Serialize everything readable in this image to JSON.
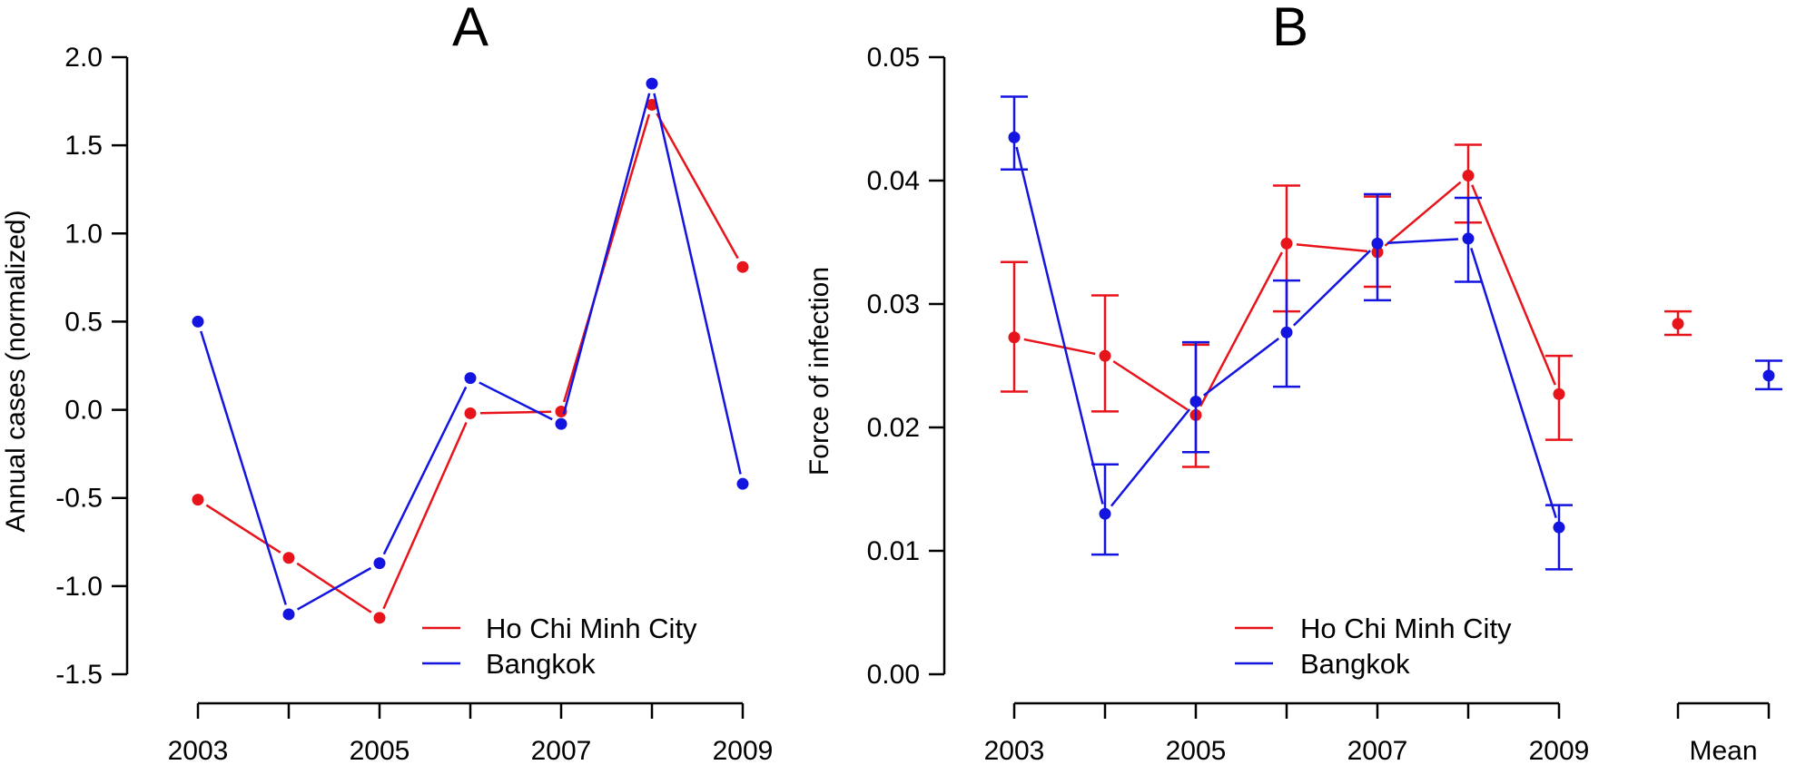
{
  "chart_data": [
    {
      "panel": "A",
      "type": "line",
      "title": "A",
      "xlabel": "",
      "ylabel": "Annual cases (normalized)",
      "x": [
        2003,
        2004,
        2005,
        2006,
        2007,
        2008,
        2009
      ],
      "x_tick_labels": [
        "2003",
        "2005",
        "2007",
        "2009"
      ],
      "y_tick_labels": [
        "-1.5",
        "-1.0",
        "-0.5",
        "0.0",
        "0.5",
        "1.0",
        "1.5",
        "2.0"
      ],
      "ylim": [
        -1.5,
        2.0
      ],
      "legend_position": "bottom-right",
      "series": [
        {
          "name": "Ho Chi Minh City",
          "color": "#e8141b",
          "values": [
            -0.51,
            -0.84,
            -1.18,
            -0.02,
            -0.01,
            1.73,
            0.81
          ]
        },
        {
          "name": "Bangkok",
          "color": "#1414e0",
          "values": [
            0.5,
            -1.16,
            -0.87,
            0.18,
            -0.08,
            1.85,
            -0.42
          ]
        }
      ]
    },
    {
      "panel": "B",
      "type": "line",
      "title": "B",
      "xlabel": "",
      "ylabel": "Force of infection",
      "x": [
        2003,
        2004,
        2005,
        2006,
        2007,
        2008,
        2009
      ],
      "x_tick_labels": [
        "2003",
        "2005",
        "2007",
        "2009"
      ],
      "mean_label": "Mean",
      "y_tick_labels": [
        "0.00",
        "0.01",
        "0.02",
        "0.03",
        "0.04",
        "0.05"
      ],
      "ylim": [
        0.0,
        0.05
      ],
      "legend_position": "bottom-right",
      "series": [
        {
          "name": "Ho Chi Minh City",
          "color": "#e8141b",
          "values": [
            0.0273,
            0.0258,
            0.021,
            0.0349,
            0.0342,
            0.0404,
            0.0227
          ],
          "lower": [
            0.0229,
            0.0213,
            0.0168,
            0.0294,
            0.0314,
            0.0366,
            0.019
          ],
          "upper": [
            0.0334,
            0.0307,
            0.0267,
            0.0396,
            0.0387,
            0.0429,
            0.0258
          ],
          "mean": 0.0284,
          "mean_lower": 0.0275,
          "mean_upper": 0.0294
        },
        {
          "name": "Bangkok",
          "color": "#1414e0",
          "values": [
            0.0435,
            0.013,
            0.0221,
            0.0277,
            0.0349,
            0.0353,
            0.0119
          ],
          "lower": [
            0.0409,
            0.0097,
            0.018,
            0.0233,
            0.0303,
            0.0318,
            0.0085
          ],
          "upper": [
            0.0468,
            0.017,
            0.0269,
            0.0319,
            0.0389,
            0.0386,
            0.0137
          ],
          "mean": 0.0242,
          "mean_lower": 0.0231,
          "mean_upper": 0.0254
        }
      ]
    }
  ]
}
